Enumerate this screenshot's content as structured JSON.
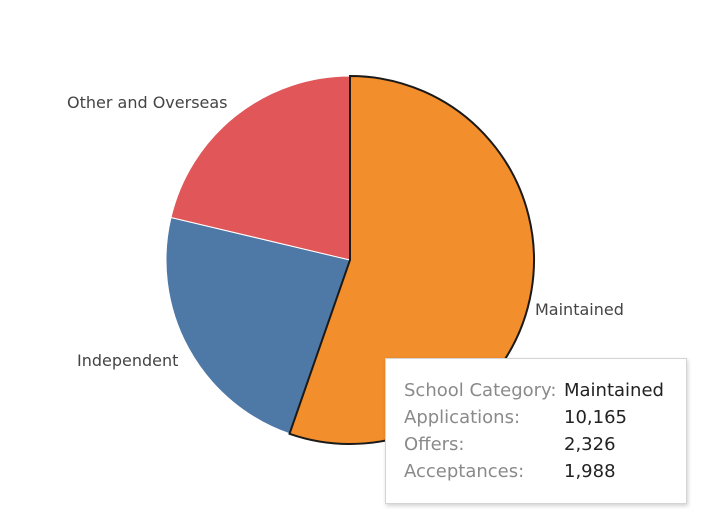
{
  "chart_data": {
    "type": "pie",
    "title": "",
    "slices": [
      {
        "label": "Maintained",
        "value": 10165,
        "color": "#f28e2b"
      },
      {
        "label": "Independent",
        "value": 4295,
        "color": "#4e79a7"
      },
      {
        "label": "Other and Overseas",
        "value": 3911,
        "color": "#e15759"
      }
    ],
    "highlighted": "Maintained",
    "legend": "none"
  },
  "tooltip": {
    "rows": [
      {
        "key": "School Category:",
        "value": "Maintained"
      },
      {
        "key": "Applications:",
        "value": "10,165"
      },
      {
        "key": "Offers:",
        "value": "2,326"
      },
      {
        "key": "Acceptances:",
        "value": "1,988"
      }
    ]
  }
}
